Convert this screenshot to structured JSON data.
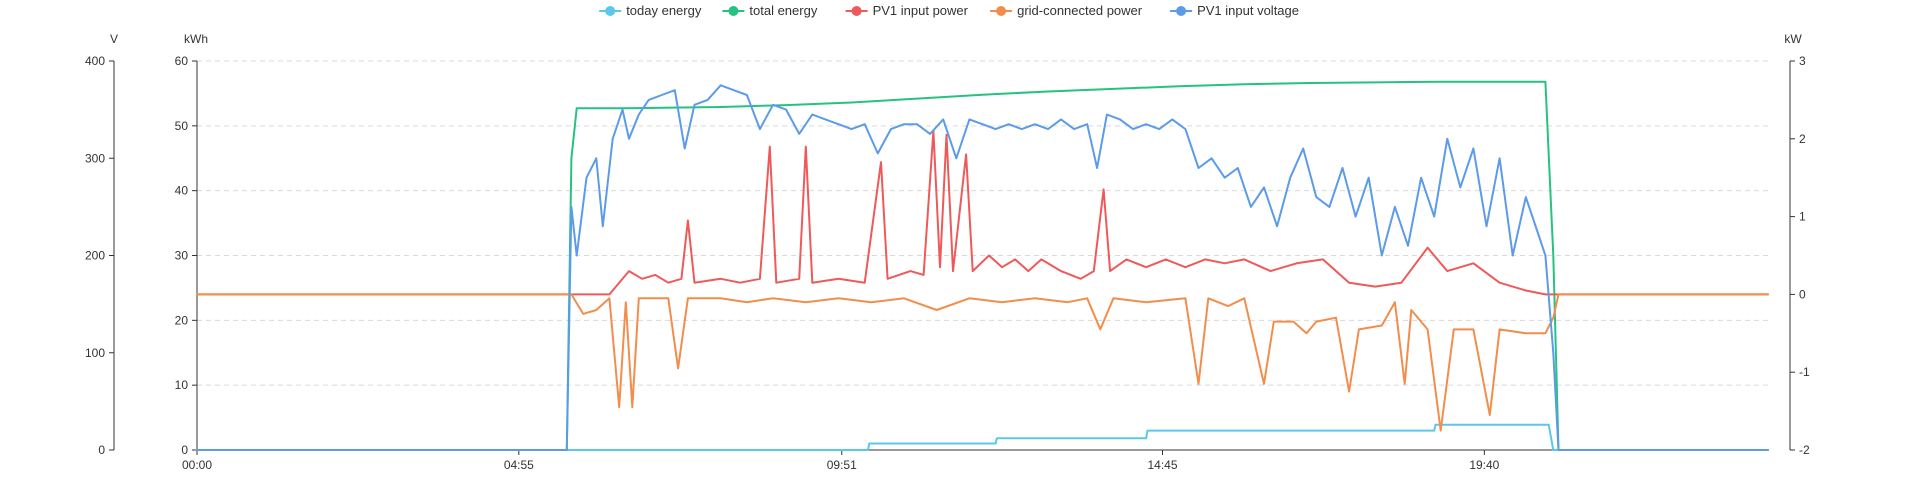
{
  "chart_data": {
    "type": "line",
    "grid": true,
    "legend_position": "top-center",
    "x": {
      "range_hours": [
        0,
        24
      ],
      "ticks": [
        {
          "label": "00:00",
          "h": 0
        },
        {
          "label": "04:55",
          "h": 4.9167
        },
        {
          "label": "09:51",
          "h": 9.85
        },
        {
          "label": "14:45",
          "h": 14.75
        },
        {
          "label": "19:40",
          "h": 19.6667
        }
      ]
    },
    "axes": {
      "voltage": {
        "title": "V",
        "min": 0,
        "max": 400,
        "ticks": [
          "0",
          "100",
          "200",
          "300",
          "400"
        ],
        "tick_values": [
          0,
          100,
          200,
          300,
          400
        ]
      },
      "energy": {
        "title": "kWh",
        "min": 0,
        "max": 60,
        "ticks": [
          "0",
          "10",
          "20",
          "30",
          "40",
          "50",
          "60"
        ],
        "tick_values": [
          0,
          10,
          20,
          30,
          40,
          50,
          60
        ]
      },
      "power": {
        "title": "kW",
        "min": -2,
        "max": 3,
        "ticks": [
          "-2",
          "-1",
          "0",
          "1",
          "2",
          "3"
        ],
        "tick_values": [
          -2,
          -1,
          0,
          1,
          2,
          3
        ]
      }
    },
    "series": [
      {
        "name": "today energy",
        "color": "#5ac8ea",
        "axis": "energy",
        "points": [
          [
            0,
            0
          ],
          [
            10.25,
            0
          ],
          [
            10.27,
            1
          ],
          [
            12.2,
            1
          ],
          [
            12.22,
            1.8
          ],
          [
            14.5,
            1.8
          ],
          [
            14.52,
            3
          ],
          [
            18.9,
            3
          ],
          [
            18.92,
            3.9
          ],
          [
            20.65,
            3.9
          ],
          [
            20.72,
            0
          ],
          [
            24,
            0
          ]
        ]
      },
      {
        "name": "total energy",
        "color": "#26c281",
        "axis": "energy",
        "points": [
          [
            0,
            0
          ],
          [
            5.65,
            0
          ],
          [
            5.72,
            45
          ],
          [
            5.8,
            52.7
          ],
          [
            6.5,
            52.7
          ],
          [
            8,
            52.9
          ],
          [
            9,
            53.2
          ],
          [
            10,
            53.6
          ],
          [
            11,
            54.2
          ],
          [
            12,
            54.8
          ],
          [
            13,
            55.3
          ],
          [
            14,
            55.7
          ],
          [
            15,
            56.1
          ],
          [
            16,
            56.4
          ],
          [
            17,
            56.6
          ],
          [
            18,
            56.7
          ],
          [
            19,
            56.8
          ],
          [
            20,
            56.8
          ],
          [
            20.6,
            56.8
          ],
          [
            20.72,
            30
          ],
          [
            20.8,
            0
          ],
          [
            24,
            0
          ]
        ]
      },
      {
        "name": "PV1 input power",
        "color": "#ee5a5a",
        "axis": "power",
        "points": [
          [
            0,
            0
          ],
          [
            5.72,
            0
          ],
          [
            6.3,
            0
          ],
          [
            6.6,
            0.3
          ],
          [
            6.8,
            0.2
          ],
          [
            7,
            0.25
          ],
          [
            7.2,
            0.15
          ],
          [
            7.4,
            0.2
          ],
          [
            7.5,
            0.95
          ],
          [
            7.6,
            0.15
          ],
          [
            8,
            0.2
          ],
          [
            8.3,
            0.15
          ],
          [
            8.6,
            0.2
          ],
          [
            8.75,
            1.9
          ],
          [
            8.85,
            0.15
          ],
          [
            9.2,
            0.2
          ],
          [
            9.3,
            1.9
          ],
          [
            9.4,
            0.15
          ],
          [
            9.8,
            0.2
          ],
          [
            10.2,
            0.15
          ],
          [
            10.45,
            1.7
          ],
          [
            10.55,
            0.2
          ],
          [
            10.9,
            0.3
          ],
          [
            11.1,
            0.25
          ],
          [
            11.25,
            2.1
          ],
          [
            11.35,
            0.35
          ],
          [
            11.45,
            2.05
          ],
          [
            11.55,
            0.3
          ],
          [
            11.75,
            1.8
          ],
          [
            11.85,
            0.3
          ],
          [
            12.1,
            0.5
          ],
          [
            12.3,
            0.35
          ],
          [
            12.5,
            0.45
          ],
          [
            12.7,
            0.3
          ],
          [
            12.9,
            0.45
          ],
          [
            13.2,
            0.3
          ],
          [
            13.5,
            0.2
          ],
          [
            13.7,
            0.3
          ],
          [
            13.85,
            1.35
          ],
          [
            13.95,
            0.3
          ],
          [
            14.2,
            0.45
          ],
          [
            14.5,
            0.35
          ],
          [
            14.8,
            0.45
          ],
          [
            15.1,
            0.35
          ],
          [
            15.4,
            0.45
          ],
          [
            15.7,
            0.4
          ],
          [
            16,
            0.45
          ],
          [
            16.4,
            0.3
          ],
          [
            16.8,
            0.4
          ],
          [
            17.2,
            0.45
          ],
          [
            17.6,
            0.15
          ],
          [
            18,
            0.1
          ],
          [
            18.4,
            0.15
          ],
          [
            18.8,
            0.6
          ],
          [
            19.1,
            0.3
          ],
          [
            19.5,
            0.4
          ],
          [
            19.9,
            0.15
          ],
          [
            20.3,
            0.05
          ],
          [
            20.6,
            0.0
          ],
          [
            24,
            0
          ]
        ]
      },
      {
        "name": "grid-connected power",
        "color": "#f28d4c",
        "axis": "power",
        "points": [
          [
            0,
            0
          ],
          [
            5.72,
            0
          ],
          [
            5.9,
            -0.25
          ],
          [
            6.1,
            -0.2
          ],
          [
            6.3,
            -0.05
          ],
          [
            6.45,
            -1.45
          ],
          [
            6.55,
            -0.1
          ],
          [
            6.65,
            -1.45
          ],
          [
            6.75,
            -0.05
          ],
          [
            7.2,
            -0.05
          ],
          [
            7.35,
            -0.95
          ],
          [
            7.5,
            -0.05
          ],
          [
            8,
            -0.05
          ],
          [
            8.4,
            -0.1
          ],
          [
            8.8,
            -0.05
          ],
          [
            9.3,
            -0.1
          ],
          [
            9.8,
            -0.05
          ],
          [
            10.3,
            -0.1
          ],
          [
            10.8,
            -0.05
          ],
          [
            11.3,
            -0.2
          ],
          [
            11.8,
            -0.05
          ],
          [
            12.3,
            -0.1
          ],
          [
            12.8,
            -0.05
          ],
          [
            13.3,
            -0.1
          ],
          [
            13.6,
            -0.05
          ],
          [
            13.8,
            -0.45
          ],
          [
            14.0,
            -0.05
          ],
          [
            14.5,
            -0.1
          ],
          [
            15.1,
            -0.05
          ],
          [
            15.3,
            -1.15
          ],
          [
            15.45,
            -0.05
          ],
          [
            15.75,
            -0.15
          ],
          [
            16.0,
            -0.05
          ],
          [
            16.3,
            -1.15
          ],
          [
            16.45,
            -0.35
          ],
          [
            16.75,
            -0.35
          ],
          [
            16.95,
            -0.5
          ],
          [
            17.1,
            -0.35
          ],
          [
            17.4,
            -0.3
          ],
          [
            17.6,
            -1.25
          ],
          [
            17.75,
            -0.45
          ],
          [
            18.1,
            -0.4
          ],
          [
            18.3,
            -0.1
          ],
          [
            18.45,
            -1.15
          ],
          [
            18.55,
            -0.2
          ],
          [
            18.8,
            -0.45
          ],
          [
            19.0,
            -1.75
          ],
          [
            19.2,
            -0.45
          ],
          [
            19.5,
            -0.45
          ],
          [
            19.75,
            -1.55
          ],
          [
            19.9,
            -0.45
          ],
          [
            20.3,
            -0.5
          ],
          [
            20.6,
            -0.5
          ],
          [
            20.72,
            -0.3
          ],
          [
            20.8,
            0
          ],
          [
            24,
            0
          ]
        ]
      },
      {
        "name": "PV1 input voltage",
        "color": "#5b9bea",
        "axis": "voltage",
        "points": [
          [
            0,
            0
          ],
          [
            5.65,
            0
          ],
          [
            5.72,
            250
          ],
          [
            5.8,
            200
          ],
          [
            5.95,
            280
          ],
          [
            6.1,
            300
          ],
          [
            6.2,
            230
          ],
          [
            6.35,
            320
          ],
          [
            6.5,
            350
          ],
          [
            6.6,
            320
          ],
          [
            6.75,
            345
          ],
          [
            6.9,
            360
          ],
          [
            7.1,
            365
          ],
          [
            7.3,
            370
          ],
          [
            7.45,
            310
          ],
          [
            7.6,
            355
          ],
          [
            7.8,
            360
          ],
          [
            8.0,
            375
          ],
          [
            8.2,
            370
          ],
          [
            8.4,
            365
          ],
          [
            8.6,
            330
          ],
          [
            8.8,
            355
          ],
          [
            9.0,
            350
          ],
          [
            9.2,
            325
          ],
          [
            9.4,
            345
          ],
          [
            9.6,
            340
          ],
          [
            9.8,
            335
          ],
          [
            10.0,
            330
          ],
          [
            10.2,
            335
          ],
          [
            10.4,
            305
          ],
          [
            10.6,
            330
          ],
          [
            10.8,
            335
          ],
          [
            11.0,
            335
          ],
          [
            11.2,
            325
          ],
          [
            11.4,
            340
          ],
          [
            11.6,
            300
          ],
          [
            11.8,
            340
          ],
          [
            12.0,
            335
          ],
          [
            12.2,
            330
          ],
          [
            12.4,
            335
          ],
          [
            12.6,
            330
          ],
          [
            12.8,
            335
          ],
          [
            13.0,
            330
          ],
          [
            13.2,
            340
          ],
          [
            13.4,
            330
          ],
          [
            13.6,
            335
          ],
          [
            13.75,
            290
          ],
          [
            13.9,
            345
          ],
          [
            14.1,
            340
          ],
          [
            14.3,
            330
          ],
          [
            14.5,
            335
          ],
          [
            14.7,
            330
          ],
          [
            14.9,
            340
          ],
          [
            15.1,
            330
          ],
          [
            15.3,
            290
          ],
          [
            15.5,
            300
          ],
          [
            15.7,
            280
          ],
          [
            15.9,
            290
          ],
          [
            16.1,
            250
          ],
          [
            16.3,
            270
          ],
          [
            16.5,
            230
          ],
          [
            16.7,
            280
          ],
          [
            16.9,
            310
          ],
          [
            17.1,
            260
          ],
          [
            17.3,
            250
          ],
          [
            17.5,
            290
          ],
          [
            17.7,
            240
          ],
          [
            17.9,
            280
          ],
          [
            18.1,
            200
          ],
          [
            18.3,
            250
          ],
          [
            18.5,
            210
          ],
          [
            18.7,
            280
          ],
          [
            18.9,
            240
          ],
          [
            19.1,
            320
          ],
          [
            19.3,
            270
          ],
          [
            19.5,
            310
          ],
          [
            19.7,
            230
          ],
          [
            19.9,
            300
          ],
          [
            20.1,
            200
          ],
          [
            20.3,
            260
          ],
          [
            20.5,
            220
          ],
          [
            20.6,
            200
          ],
          [
            20.72,
            100
          ],
          [
            20.8,
            0
          ],
          [
            24,
            0
          ]
        ]
      }
    ]
  }
}
